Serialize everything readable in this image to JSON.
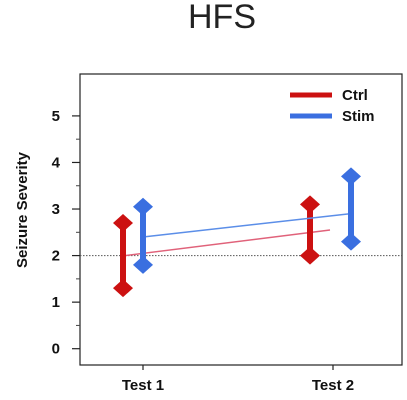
{
  "chart_data": {
    "type": "line",
    "title": "HFS",
    "xlabel": "",
    "ylabel": "Seizure Severity",
    "categories": [
      "Test 1",
      "Test 2"
    ],
    "ylim": [
      -0.35,
      5.9
    ],
    "yticks": [
      0,
      1,
      2,
      3,
      4,
      5
    ],
    "ytick_labels": [
      "0",
      "1",
      "2",
      "3",
      "4",
      "5"
    ],
    "reference_line": 2.0,
    "grid": false,
    "legend_position": "top-right",
    "series": [
      {
        "name": "Ctrl",
        "color": "#cc1111",
        "values": [
          2.0,
          2.55
        ],
        "error_low": [
          1.3,
          2.0
        ],
        "error_high": [
          2.7,
          3.1
        ]
      },
      {
        "name": "Stim",
        "color": "#3a6fe0",
        "values": [
          2.4,
          2.9
        ],
        "error_low": [
          1.8,
          2.3
        ],
        "error_high": [
          3.05,
          3.7
        ]
      }
    ]
  }
}
